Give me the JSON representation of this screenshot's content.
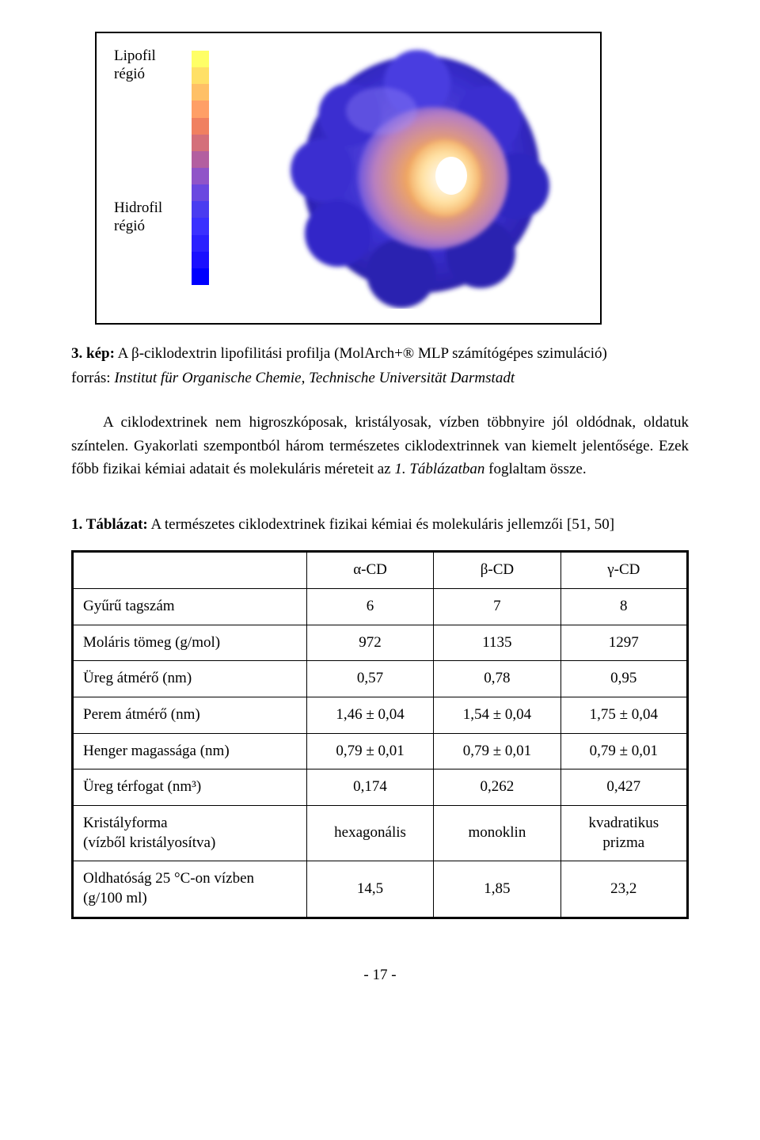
{
  "figure": {
    "label_top": "Lipofil\nrégió",
    "label_bottom": "Hidrofil\nrégió",
    "label_fontsize": 19,
    "scale_colors": [
      "#ffff66",
      "#ffe066",
      "#ffc066",
      "#ff9f66",
      "#f08060",
      "#d46f7a",
      "#b35fa0",
      "#9054c8",
      "#6a48e0",
      "#4a3cf0",
      "#3a30ff",
      "#2a20ff",
      "#1a10ff",
      "#0000ff"
    ],
    "molecule_colors": {
      "outer": "#3a2fd0",
      "outer_light": "#6a55e0",
      "mid": "#b97fc0",
      "inner": "#f0a660",
      "inner_light": "#ffe0a0",
      "highlight": "#ffffff"
    },
    "border_color": "#000000",
    "background_color": "#ffffff"
  },
  "caption": {
    "prefix": "3. kép:",
    "text": " A β-ciklodextrin lipofilitási profilja (MolArch+® MLP számítógépes szimuláció)"
  },
  "source": {
    "label": "forrás: ",
    "text": "Institut für Organische Chemie, Technische Universität Darmstadt"
  },
  "paragraph": {
    "part1": "A ciklodextrinek nem higroszkóposak, kristályosak, vízben többnyire jól oldódnak, oldatuk színtelen. Gyakorlati szempontból három természetes ciklodextrinnek van kiemelt jelentősége. Ezek főbb fizikai kémiai adatait és molekuláris méreteit az ",
    "ital": "1. Táblázatban",
    "part2": " foglaltam össze."
  },
  "table": {
    "title_prefix": "1. Táblázat:",
    "title_text": " A természetes ciklodextrinek fizikai kémiai és molekuláris jellemzői [51, 50]",
    "columns": [
      "",
      "α-CD",
      "β-CD",
      "γ-CD"
    ],
    "rows": [
      [
        "Gyűrű tagszám",
        "6",
        "7",
        "8"
      ],
      [
        "Moláris tömeg (g/mol)",
        "972",
        "1135",
        "1297"
      ],
      [
        "Üreg átmérő (nm)",
        "0,57",
        "0,78",
        "0,95"
      ],
      [
        "Perem átmérő (nm)",
        "1,46 ± 0,04",
        "1,54 ± 0,04",
        "1,75 ± 0,04"
      ],
      [
        "Henger magassága (nm)",
        "0,79 ± 0,01",
        "0,79 ± 0,01",
        "0,79 ± 0,01"
      ],
      [
        "Üreg térfogat (nm³)",
        "0,174",
        "0,262",
        "0,427"
      ],
      [
        "Kristályforma\n(vízből kristályosítva)",
        "hexagonális",
        "monoklin",
        "kvadratikus\nprizma"
      ],
      [
        "Oldhatóság 25 °C-on vízben\n(g/100 ml)",
        "14,5",
        "1,85",
        "23,2"
      ]
    ],
    "cell_fontsize": 19,
    "border_color": "#000000"
  },
  "page_number": "- 17 -"
}
